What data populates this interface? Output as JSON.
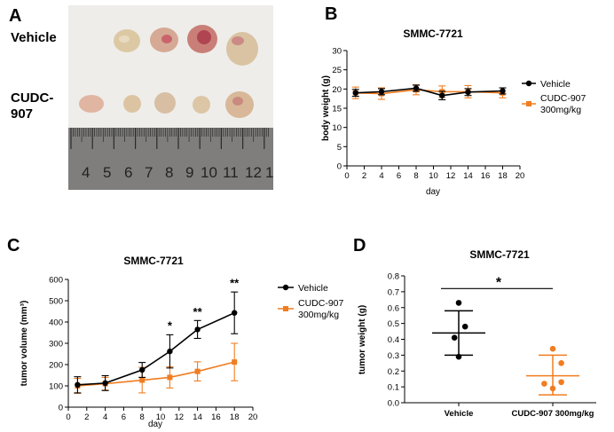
{
  "colors": {
    "vehicle": "#000000",
    "cudc": "#f07d21",
    "axis": "#000000"
  },
  "panels": {
    "A": {
      "letter": "A",
      "row1_label": "Vehicle",
      "row2_label_line1": "CUDC-",
      "row2_label_line2": "907",
      "ruler_numbers": [
        "4",
        "5",
        "6",
        "7",
        "8",
        "9",
        "10",
        "11",
        "12",
        "1"
      ]
    },
    "B": {
      "letter": "B"
    },
    "C": {
      "letter": "C"
    },
    "D": {
      "letter": "D"
    }
  },
  "chart_data": [
    {
      "id": "B",
      "type": "line",
      "title": "SMMC-7721",
      "xlabel": "day",
      "ylabel": "body weight (g)",
      "xlim": [
        0,
        20
      ],
      "ylim": [
        0,
        30
      ],
      "xticks": [
        0,
        2,
        4,
        6,
        8,
        10,
        12,
        14,
        16,
        18,
        20
      ],
      "yticks": [
        0,
        5,
        10,
        15,
        20,
        25,
        30
      ],
      "legend": {
        "position": "right",
        "entries": [
          {
            "label_line1": "Vehicle",
            "label_line2": ""
          },
          {
            "label_line1": "CUDC-907",
            "label_line2": "300mg/kg"
          }
        ]
      },
      "series": [
        {
          "name": "Vehicle",
          "x": [
            1,
            4,
            8,
            11,
            14,
            18
          ],
          "y": [
            19.0,
            19.3,
            20.2,
            18.3,
            19.2,
            19.5
          ],
          "err": [
            0.9,
            0.8,
            0.8,
            1.1,
            0.9,
            0.8
          ]
        },
        {
          "name": "CUDC-907 300mg/kg",
          "x": [
            1,
            4,
            8,
            11,
            14,
            18
          ],
          "y": [
            19.0,
            18.8,
            19.8,
            19.3,
            19.3,
            19.0
          ],
          "err": [
            1.5,
            1.5,
            1.3,
            1.5,
            1.6,
            1.3
          ]
        }
      ]
    },
    {
      "id": "C",
      "type": "line",
      "title": "SMMC-7721",
      "xlabel": "day",
      "ylabel": "tumor volume (mm³)",
      "xlim": [
        0,
        20
      ],
      "ylim": [
        0,
        600
      ],
      "xticks": [
        0,
        2,
        4,
        6,
        8,
        10,
        12,
        14,
        16,
        18,
        20
      ],
      "yticks": [
        0,
        100,
        200,
        300,
        400,
        500,
        600
      ],
      "legend": {
        "position": "right",
        "entries": [
          {
            "label_line1": "Vehicle",
            "label_line2": ""
          },
          {
            "label_line1": "CUDC-907",
            "label_line2": "300mg/kg"
          }
        ]
      },
      "annotations": [
        {
          "text": "*",
          "x": 11,
          "y": 365
        },
        {
          "text": "**",
          "x": 14,
          "y": 430
        },
        {
          "text": "**",
          "x": 18,
          "y": 565
        }
      ],
      "series": [
        {
          "name": "Vehicle",
          "x": [
            1,
            4,
            8,
            11,
            14,
            18
          ],
          "y": [
            105,
            113,
            175,
            262,
            365,
            443
          ],
          "err": [
            38,
            35,
            35,
            78,
            42,
            98
          ]
        },
        {
          "name": "CUDC-907 300mg/kg",
          "x": [
            1,
            4,
            8,
            11,
            14,
            18
          ],
          "y": [
            100,
            110,
            127,
            140,
            168,
            212
          ],
          "err": [
            35,
            30,
            60,
            50,
            45,
            88
          ]
        }
      ]
    },
    {
      "id": "D",
      "type": "scatter",
      "title": "SMMC-7721",
      "xlabel": "",
      "ylabel": "tumor weight (g)",
      "ylim": [
        0,
        0.8
      ],
      "yticks": [
        0.0,
        0.1,
        0.2,
        0.3,
        0.4,
        0.5,
        0.6,
        0.7,
        0.8
      ],
      "categories": [
        "Vehicle",
        "CUDC-907 300mg/kg"
      ],
      "significance": {
        "text": "*",
        "between": [
          0,
          1
        ],
        "y": 0.72
      },
      "groups": [
        {
          "name": "Vehicle",
          "points": [
            0.63,
            0.48,
            0.41,
            0.29
          ],
          "point_offsets": [
            0,
            0.3,
            -0.2,
            0
          ],
          "mean": 0.44,
          "sd_low": 0.3,
          "sd_high": 0.58
        },
        {
          "name": "CUDC-907 300mg/kg",
          "points": [
            0.34,
            0.25,
            0.13,
            0.12,
            0.09
          ],
          "point_offsets": [
            0,
            0.4,
            0.4,
            -0.4,
            0
          ],
          "mean": 0.17,
          "sd_low": 0.05,
          "sd_high": 0.3
        }
      ]
    }
  ]
}
